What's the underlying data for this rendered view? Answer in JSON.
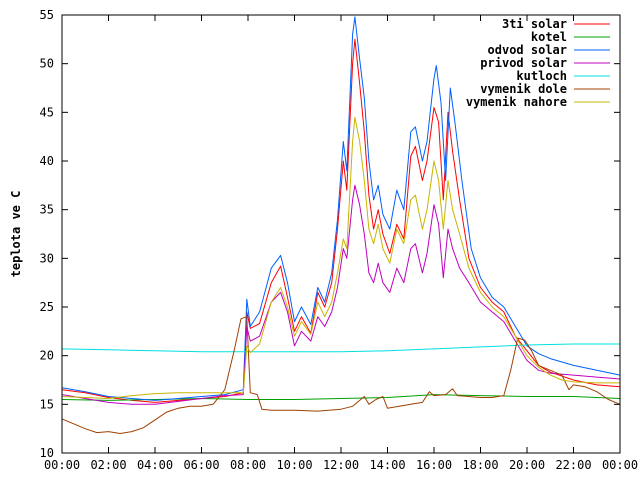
{
  "chart_data": {
    "type": "line",
    "ylabel": "teplota ve C",
    "xlabel": "",
    "ylim": [
      10,
      55
    ],
    "yticks": [
      10,
      15,
      20,
      25,
      30,
      35,
      40,
      45,
      50,
      55
    ],
    "xlim": [
      0,
      24
    ],
    "xticks": [
      0,
      2,
      4,
      6,
      8,
      10,
      12,
      14,
      16,
      18,
      20,
      22,
      24
    ],
    "xtick_labels": [
      "00:00",
      "02:00",
      "04:00",
      "06:00",
      "08:00",
      "10:00",
      "12:00",
      "14:00",
      "16:00",
      "18:00",
      "20:00",
      "22:00",
      "00:00"
    ],
    "grid": false,
    "legend_position": "top-right",
    "series": [
      {
        "name": "3ti solar",
        "color": "#ff0000",
        "points": [
          [
            0,
            16.5
          ],
          [
            1,
            16.2
          ],
          [
            2,
            15.7
          ],
          [
            3,
            15.4
          ],
          [
            4,
            15.2
          ],
          [
            5,
            15.4
          ],
          [
            6,
            15.6
          ],
          [
            7,
            15.8
          ],
          [
            7.8,
            16.2
          ],
          [
            7.95,
            24.5
          ],
          [
            8.1,
            22.8
          ],
          [
            8.5,
            23.3
          ],
          [
            9,
            27.5
          ],
          [
            9.4,
            29.2
          ],
          [
            9.7,
            26.0
          ],
          [
            10,
            22.5
          ],
          [
            10.3,
            24.0
          ],
          [
            10.7,
            22.3
          ],
          [
            11,
            26.5
          ],
          [
            11.3,
            25.0
          ],
          [
            11.6,
            27.5
          ],
          [
            11.85,
            33.0
          ],
          [
            12.1,
            40.0
          ],
          [
            12.25,
            37.0
          ],
          [
            12.5,
            50.0
          ],
          [
            12.6,
            52.5
          ],
          [
            12.8,
            48.0
          ],
          [
            13,
            43.0
          ],
          [
            13.2,
            36.5
          ],
          [
            13.4,
            33.0
          ],
          [
            13.6,
            35.0
          ],
          [
            13.8,
            32.5
          ],
          [
            14.1,
            30.5
          ],
          [
            14.4,
            33.5
          ],
          [
            14.7,
            32.0
          ],
          [
            15,
            40.5
          ],
          [
            15.2,
            41.5
          ],
          [
            15.5,
            38.0
          ],
          [
            15.7,
            40.0
          ],
          [
            16,
            45.5
          ],
          [
            16.2,
            44.0
          ],
          [
            16.4,
            36.0
          ],
          [
            16.6,
            45.0
          ],
          [
            16.8,
            41.0
          ],
          [
            17.1,
            36.0
          ],
          [
            17.5,
            30.0
          ],
          [
            18,
            27.0
          ],
          [
            18.5,
            25.5
          ],
          [
            19,
            24.5
          ],
          [
            19.5,
            22.0
          ],
          [
            20,
            20.5
          ],
          [
            20.5,
            19.0
          ],
          [
            21,
            18.3
          ],
          [
            22,
            17.5
          ],
          [
            23,
            17.0
          ],
          [
            24,
            16.8
          ]
        ]
      },
      {
        "name": "kotel",
        "color": "#00a000",
        "points": [
          [
            0,
            15.5
          ],
          [
            2,
            15.4
          ],
          [
            4,
            15.5
          ],
          [
            6,
            15.6
          ],
          [
            8,
            15.5
          ],
          [
            10,
            15.5
          ],
          [
            12,
            15.6
          ],
          [
            14,
            15.7
          ],
          [
            16,
            16.0
          ],
          [
            18,
            15.9
          ],
          [
            20,
            15.8
          ],
          [
            22,
            15.8
          ],
          [
            24,
            15.6
          ]
        ]
      },
      {
        "name": "odvod solar",
        "color": "#0060ff",
        "points": [
          [
            0,
            16.7
          ],
          [
            1,
            16.3
          ],
          [
            2,
            15.8
          ],
          [
            3,
            15.6
          ],
          [
            4,
            15.4
          ],
          [
            5,
            15.6
          ],
          [
            6,
            15.8
          ],
          [
            7,
            16.0
          ],
          [
            7.8,
            16.5
          ],
          [
            7.95,
            25.8
          ],
          [
            8.1,
            23.0
          ],
          [
            8.5,
            24.5
          ],
          [
            9,
            29.0
          ],
          [
            9.4,
            30.3
          ],
          [
            9.7,
            27.5
          ],
          [
            10,
            23.5
          ],
          [
            10.3,
            25.0
          ],
          [
            10.7,
            23.2
          ],
          [
            11,
            27.0
          ],
          [
            11.3,
            25.5
          ],
          [
            11.6,
            28.5
          ],
          [
            11.85,
            34.0
          ],
          [
            12.1,
            42.0
          ],
          [
            12.25,
            39.0
          ],
          [
            12.5,
            53.0
          ],
          [
            12.6,
            54.8
          ],
          [
            12.8,
            50.5
          ],
          [
            13,
            46.5
          ],
          [
            13.2,
            40.0
          ],
          [
            13.4,
            36.0
          ],
          [
            13.6,
            37.5
          ],
          [
            13.8,
            34.5
          ],
          [
            14.1,
            33.0
          ],
          [
            14.4,
            37.0
          ],
          [
            14.7,
            35.0
          ],
          [
            15,
            43.0
          ],
          [
            15.2,
            43.5
          ],
          [
            15.5,
            40.0
          ],
          [
            15.7,
            42.0
          ],
          [
            16,
            48.5
          ],
          [
            16.1,
            49.8
          ],
          [
            16.3,
            46.0
          ],
          [
            16.5,
            38.0
          ],
          [
            16.7,
            47.5
          ],
          [
            16.9,
            44.0
          ],
          [
            17.2,
            38.0
          ],
          [
            17.6,
            31.0
          ],
          [
            18,
            28.0
          ],
          [
            18.5,
            26.0
          ],
          [
            19,
            25.0
          ],
          [
            19.5,
            23.0
          ],
          [
            20,
            21.0
          ],
          [
            20.5,
            20.2
          ],
          [
            21,
            19.7
          ],
          [
            22,
            19.0
          ],
          [
            23,
            18.5
          ],
          [
            24,
            18.0
          ]
        ]
      },
      {
        "name": "privod solar",
        "color": "#c000c0",
        "points": [
          [
            0,
            16.0
          ],
          [
            1,
            15.6
          ],
          [
            2,
            15.2
          ],
          [
            3,
            15.0
          ],
          [
            4,
            15.0
          ],
          [
            5,
            15.3
          ],
          [
            6,
            15.6
          ],
          [
            7,
            15.9
          ],
          [
            7.8,
            16.0
          ],
          [
            7.95,
            23.0
          ],
          [
            8.1,
            21.5
          ],
          [
            8.5,
            22.0
          ],
          [
            9,
            25.5
          ],
          [
            9.4,
            26.5
          ],
          [
            9.7,
            24.5
          ],
          [
            10,
            21.0
          ],
          [
            10.3,
            22.5
          ],
          [
            10.7,
            21.5
          ],
          [
            11,
            24.0
          ],
          [
            11.3,
            23.0
          ],
          [
            11.6,
            24.5
          ],
          [
            11.85,
            27.0
          ],
          [
            12.1,
            31.0
          ],
          [
            12.25,
            30.0
          ],
          [
            12.5,
            36.0
          ],
          [
            12.6,
            37.5
          ],
          [
            12.8,
            35.5
          ],
          [
            13,
            32.5
          ],
          [
            13.2,
            28.5
          ],
          [
            13.4,
            27.5
          ],
          [
            13.6,
            29.5
          ],
          [
            13.8,
            27.5
          ],
          [
            14.1,
            26.5
          ],
          [
            14.4,
            29.0
          ],
          [
            14.7,
            27.5
          ],
          [
            15,
            31.0
          ],
          [
            15.2,
            31.5
          ],
          [
            15.5,
            28.5
          ],
          [
            15.7,
            30.5
          ],
          [
            16,
            35.5
          ],
          [
            16.2,
            33.5
          ],
          [
            16.4,
            28.0
          ],
          [
            16.6,
            33.0
          ],
          [
            16.8,
            31.0
          ],
          [
            17.1,
            29.0
          ],
          [
            17.5,
            27.5
          ],
          [
            18,
            25.5
          ],
          [
            18.5,
            24.5
          ],
          [
            19,
            23.5
          ],
          [
            19.5,
            21.5
          ],
          [
            20,
            19.5
          ],
          [
            20.5,
            18.5
          ],
          [
            21,
            18.2
          ],
          [
            22,
            18.0
          ],
          [
            23,
            17.8
          ],
          [
            24,
            17.6
          ]
        ]
      },
      {
        "name": "kutloch",
        "color": "#00e0e0",
        "points": [
          [
            0,
            20.7
          ],
          [
            2,
            20.6
          ],
          [
            4,
            20.5
          ],
          [
            6,
            20.4
          ],
          [
            8,
            20.4
          ],
          [
            10,
            20.4
          ],
          [
            12,
            20.4
          ],
          [
            14,
            20.5
          ],
          [
            16,
            20.7
          ],
          [
            18,
            20.9
          ],
          [
            20,
            21.1
          ],
          [
            22,
            21.2
          ],
          [
            24,
            21.2
          ]
        ]
      },
      {
        "name": "vymenik dole",
        "color": "#a04000",
        "points": [
          [
            0,
            13.5
          ],
          [
            0.5,
            13.0
          ],
          [
            1,
            12.5
          ],
          [
            1.5,
            12.1
          ],
          [
            2,
            12.2
          ],
          [
            2.5,
            12.0
          ],
          [
            3,
            12.2
          ],
          [
            3.5,
            12.6
          ],
          [
            4,
            13.4
          ],
          [
            4.5,
            14.2
          ],
          [
            5,
            14.6
          ],
          [
            5.5,
            14.8
          ],
          [
            6,
            14.8
          ],
          [
            6.5,
            15.0
          ],
          [
            7,
            16.5
          ],
          [
            7.4,
            20.5
          ],
          [
            7.7,
            23.8
          ],
          [
            7.95,
            24.0
          ],
          [
            8.1,
            16.2
          ],
          [
            8.4,
            16.0
          ],
          [
            8.6,
            14.5
          ],
          [
            9,
            14.4
          ],
          [
            10,
            14.4
          ],
          [
            11,
            14.3
          ],
          [
            12,
            14.5
          ],
          [
            12.5,
            14.8
          ],
          [
            13,
            15.8
          ],
          [
            13.2,
            15.0
          ],
          [
            13.5,
            15.5
          ],
          [
            13.8,
            15.8
          ],
          [
            14,
            14.6
          ],
          [
            14.5,
            14.8
          ],
          [
            15,
            15.0
          ],
          [
            15.5,
            15.2
          ],
          [
            15.8,
            16.3
          ],
          [
            16,
            15.9
          ],
          [
            16.5,
            16.0
          ],
          [
            16.8,
            16.6
          ],
          [
            17,
            15.9
          ],
          [
            17.5,
            15.8
          ],
          [
            18,
            15.7
          ],
          [
            18.5,
            15.7
          ],
          [
            19,
            15.9
          ],
          [
            19.3,
            18.5
          ],
          [
            19.6,
            21.8
          ],
          [
            19.9,
            21.6
          ],
          [
            20.2,
            20.5
          ],
          [
            20.5,
            19.0
          ],
          [
            21,
            18.5
          ],
          [
            21.5,
            18.0
          ],
          [
            21.8,
            16.5
          ],
          [
            22,
            17.0
          ],
          [
            22.5,
            16.8
          ],
          [
            23,
            16.3
          ],
          [
            23.5,
            15.5
          ],
          [
            24,
            15.0
          ]
        ]
      },
      {
        "name": "vymenik nahore",
        "color": "#c8b400",
        "points": [
          [
            0,
            15.8
          ],
          [
            1,
            15.7
          ],
          [
            2,
            15.6
          ],
          [
            3,
            15.9
          ],
          [
            4,
            16.1
          ],
          [
            5,
            16.2
          ],
          [
            6,
            16.2
          ],
          [
            7,
            16.2
          ],
          [
            7.8,
            16.2
          ],
          [
            7.95,
            21.0
          ],
          [
            8.1,
            20.3
          ],
          [
            8.5,
            21.2
          ],
          [
            9,
            25.5
          ],
          [
            9.4,
            27.0
          ],
          [
            9.7,
            25.0
          ],
          [
            10,
            22.0
          ],
          [
            10.3,
            23.5
          ],
          [
            10.7,
            22.2
          ],
          [
            11,
            25.5
          ],
          [
            11.3,
            24.0
          ],
          [
            11.6,
            25.5
          ],
          [
            11.85,
            28.5
          ],
          [
            12.1,
            32.0
          ],
          [
            12.25,
            31.0
          ],
          [
            12.5,
            42.0
          ],
          [
            12.6,
            44.5
          ],
          [
            12.8,
            42.0
          ],
          [
            13,
            38.0
          ],
          [
            13.2,
            33.0
          ],
          [
            13.4,
            31.5
          ],
          [
            13.6,
            33.5
          ],
          [
            13.8,
            31.0
          ],
          [
            14.1,
            29.5
          ],
          [
            14.4,
            33.0
          ],
          [
            14.7,
            31.5
          ],
          [
            15,
            36.0
          ],
          [
            15.2,
            36.5
          ],
          [
            15.5,
            33.0
          ],
          [
            15.7,
            35.0
          ],
          [
            16,
            40.0
          ],
          [
            16.2,
            38.0
          ],
          [
            16.4,
            33.0
          ],
          [
            16.6,
            38.0
          ],
          [
            16.8,
            35.0
          ],
          [
            17.1,
            32.5
          ],
          [
            17.5,
            29.0
          ],
          [
            18,
            26.5
          ],
          [
            18.5,
            25.0
          ],
          [
            19,
            24.0
          ],
          [
            19.5,
            22.0
          ],
          [
            20,
            20.0
          ],
          [
            20.5,
            18.8
          ],
          [
            21,
            18.0
          ],
          [
            21.5,
            17.5
          ],
          [
            22,
            17.3
          ],
          [
            23,
            17.2
          ],
          [
            24,
            17.2
          ]
        ]
      }
    ]
  }
}
